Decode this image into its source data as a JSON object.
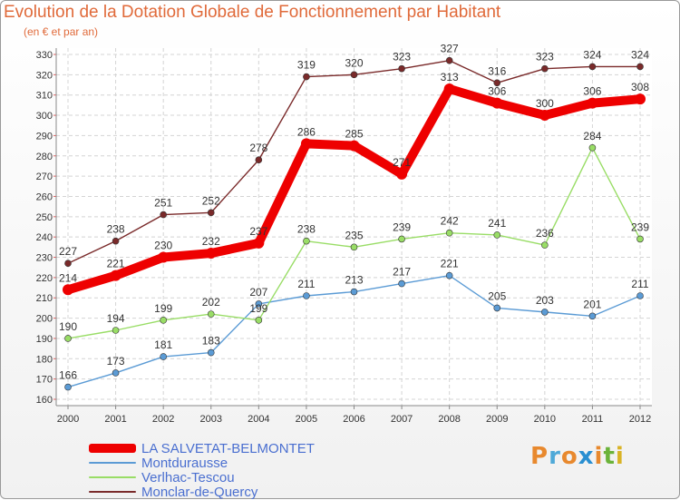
{
  "title": "Evolution de la Dotation Globale de Fonctionnement par Habitant",
  "subtitle": "(en € et par an)",
  "logo": {
    "text": "Proxiti",
    "colors": [
      "#e8892e",
      "#4fa9d8",
      "#e8892e",
      "#2a8fd1",
      "#e8892e",
      "#6bb33a",
      "#d9b326"
    ]
  },
  "chart_data": {
    "type": "line",
    "title": "Evolution de la Dotation Globale de Fonctionnement par Habitant",
    "subtitle": "(en € et par an)",
    "x": [
      "2000",
      "2001",
      "2002",
      "2003",
      "2004",
      "2005",
      "2006",
      "2007",
      "2008",
      "2009",
      "2010",
      "2011",
      "2012"
    ],
    "ylim": [
      160,
      330
    ],
    "yticks": [
      160,
      170,
      180,
      190,
      200,
      210,
      220,
      230,
      240,
      250,
      260,
      270,
      280,
      290,
      300,
      310,
      320,
      330
    ],
    "grid": true,
    "legend_position": "bottom-left",
    "series": [
      {
        "name": "LA SALVETAT-BELMONTET",
        "color": "#ee0000",
        "emphasis": true,
        "values": [
          214,
          221,
          230,
          232,
          237,
          286,
          285,
          271,
          313,
          306,
          300,
          306,
          308
        ]
      },
      {
        "name": "Montdurausse",
        "color": "#5b9bd5",
        "values": [
          166,
          173,
          181,
          183,
          207,
          211,
          213,
          217,
          221,
          205,
          203,
          201,
          211
        ]
      },
      {
        "name": "Verlhac-Tescou",
        "color": "#99dd66",
        "values": [
          190,
          194,
          199,
          202,
          199,
          238,
          235,
          239,
          242,
          241,
          236,
          284,
          239
        ]
      },
      {
        "name": "Monclar-de-Quercy",
        "color": "#7a2a2a",
        "values": [
          227,
          238,
          251,
          252,
          278,
          319,
          320,
          323,
          327,
          316,
          323,
          324,
          324
        ]
      }
    ]
  }
}
